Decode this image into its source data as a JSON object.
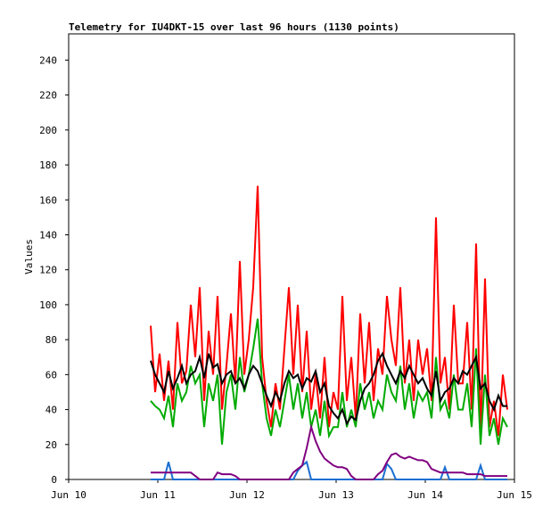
{
  "chart_data": {
    "type": "line",
    "title": "Telemetry for IU4DKT-15 over last 96 hours (1130 points)",
    "y_label": "Values",
    "xlim": [
      0,
      5
    ],
    "xticks": [
      {
        "value": 0,
        "label": "Jun 10"
      },
      {
        "value": 1,
        "label": "Jun 11"
      },
      {
        "value": 2,
        "label": "Jun 12"
      },
      {
        "value": 3,
        "label": "Jun 13"
      },
      {
        "value": 4,
        "label": "Jun 14"
      },
      {
        "value": 5,
        "label": "Jun 15"
      }
    ],
    "ylim": [
      0,
      255
    ],
    "yticks": [
      0,
      20,
      40,
      60,
      80,
      100,
      120,
      140,
      160,
      180,
      200,
      220,
      240
    ],
    "x": [
      0.92,
      0.97,
      1.02,
      1.07,
      1.12,
      1.17,
      1.22,
      1.27,
      1.32,
      1.37,
      1.42,
      1.47,
      1.52,
      1.57,
      1.62,
      1.67,
      1.72,
      1.77,
      1.82,
      1.87,
      1.92,
      1.97,
      2.02,
      2.07,
      2.12,
      2.17,
      2.22,
      2.27,
      2.32,
      2.37,
      2.42,
      2.47,
      2.52,
      2.57,
      2.62,
      2.67,
      2.72,
      2.77,
      2.82,
      2.87,
      2.92,
      2.97,
      3.02,
      3.07,
      3.12,
      3.17,
      3.22,
      3.27,
      3.32,
      3.37,
      3.42,
      3.47,
      3.52,
      3.57,
      3.62,
      3.67,
      3.72,
      3.77,
      3.82,
      3.87,
      3.92,
      3.97,
      4.02,
      4.07,
      4.12,
      4.17,
      4.22,
      4.27,
      4.32,
      4.37,
      4.42,
      4.47,
      4.52,
      4.57,
      4.62,
      4.67,
      4.72,
      4.77,
      4.82,
      4.87,
      4.92
    ],
    "series": [
      {
        "color": "#ff0000",
        "values": [
          88,
          50,
          72,
          45,
          68,
          40,
          90,
          55,
          62,
          100,
          70,
          110,
          45,
          85,
          60,
          105,
          40,
          65,
          95,
          55,
          125,
          60,
          80,
          110,
          168,
          70,
          45,
          30,
          55,
          40,
          75,
          110,
          60,
          100,
          50,
          85,
          40,
          60,
          35,
          70,
          30,
          50,
          40,
          105,
          45,
          70,
          35,
          95,
          55,
          90,
          45,
          75,
          60,
          105,
          80,
          65,
          110,
          55,
          80,
          45,
          80,
          60,
          75,
          45,
          150,
          55,
          70,
          40,
          100,
          55,
          55,
          90,
          40,
          135,
          25,
          115,
          30,
          45,
          25,
          60,
          40
        ]
      },
      {
        "color": "#00aa00",
        "values": [
          45,
          42,
          40,
          35,
          48,
          30,
          55,
          45,
          50,
          65,
          55,
          60,
          30,
          55,
          45,
          60,
          20,
          50,
          60,
          40,
          70,
          50,
          60,
          75,
          92,
          55,
          35,
          25,
          40,
          30,
          45,
          60,
          40,
          55,
          35,
          50,
          30,
          40,
          25,
          45,
          25,
          30,
          30,
          50,
          30,
          40,
          30,
          55,
          40,
          50,
          35,
          45,
          40,
          60,
          50,
          45,
          65,
          40,
          55,
          35,
          50,
          45,
          50,
          35,
          70,
          40,
          45,
          35,
          60,
          40,
          40,
          55,
          30,
          75,
          20,
          60,
          25,
          35,
          20,
          35,
          30
        ]
      },
      {
        "color": "#000000",
        "values": [
          68,
          60,
          55,
          50,
          62,
          52,
          58,
          65,
          55,
          60,
          62,
          70,
          58,
          72,
          64,
          66,
          55,
          60,
          62,
          55,
          58,
          52,
          60,
          65,
          62,
          55,
          48,
          42,
          50,
          45,
          55,
          62,
          58,
          60,
          52,
          58,
          56,
          62,
          50,
          55,
          42,
          38,
          35,
          40,
          32,
          36,
          34,
          45,
          52,
          55,
          60,
          68,
          72,
          65,
          60,
          55,
          62,
          58,
          65,
          60,
          55,
          58,
          52,
          48,
          62,
          45,
          50,
          52,
          58,
          55,
          62,
          60,
          65,
          70,
          52,
          55,
          45,
          40,
          48,
          42,
          42
        ]
      },
      {
        "color": "#1a6fd1",
        "values": [
          0,
          0,
          0,
          0,
          10,
          0,
          0,
          0,
          0,
          0,
          0,
          0,
          0,
          0,
          0,
          0,
          0,
          0,
          0,
          0,
          0,
          0,
          0,
          0,
          0,
          0,
          0,
          0,
          0,
          0,
          0,
          0,
          0,
          5,
          8,
          10,
          0,
          0,
          0,
          0,
          0,
          0,
          0,
          0,
          0,
          0,
          0,
          0,
          0,
          0,
          0,
          0,
          0,
          9,
          6,
          0,
          0,
          0,
          0,
          0,
          0,
          0,
          0,
          0,
          0,
          0,
          7,
          0,
          0,
          0,
          0,
          0,
          0,
          0,
          8,
          0,
          0,
          0,
          0,
          0,
          0
        ]
      },
      {
        "color": "#800080",
        "values": [
          4,
          4,
          4,
          4,
          4,
          4,
          4,
          4,
          4,
          4,
          2,
          0,
          0,
          0,
          0,
          4,
          3,
          3,
          3,
          2,
          0,
          0,
          0,
          0,
          0,
          0,
          0,
          0,
          0,
          0,
          0,
          0,
          4,
          6,
          8,
          18,
          30,
          22,
          16,
          12,
          10,
          8,
          7,
          7,
          6,
          2,
          0,
          0,
          0,
          0,
          0,
          3,
          5,
          10,
          14,
          15,
          13,
          12,
          13,
          12,
          11,
          11,
          10,
          6,
          5,
          4,
          4,
          4,
          4,
          4,
          4,
          3,
          3,
          3,
          3,
          2,
          2,
          2,
          2,
          2,
          2
        ]
      }
    ]
  }
}
